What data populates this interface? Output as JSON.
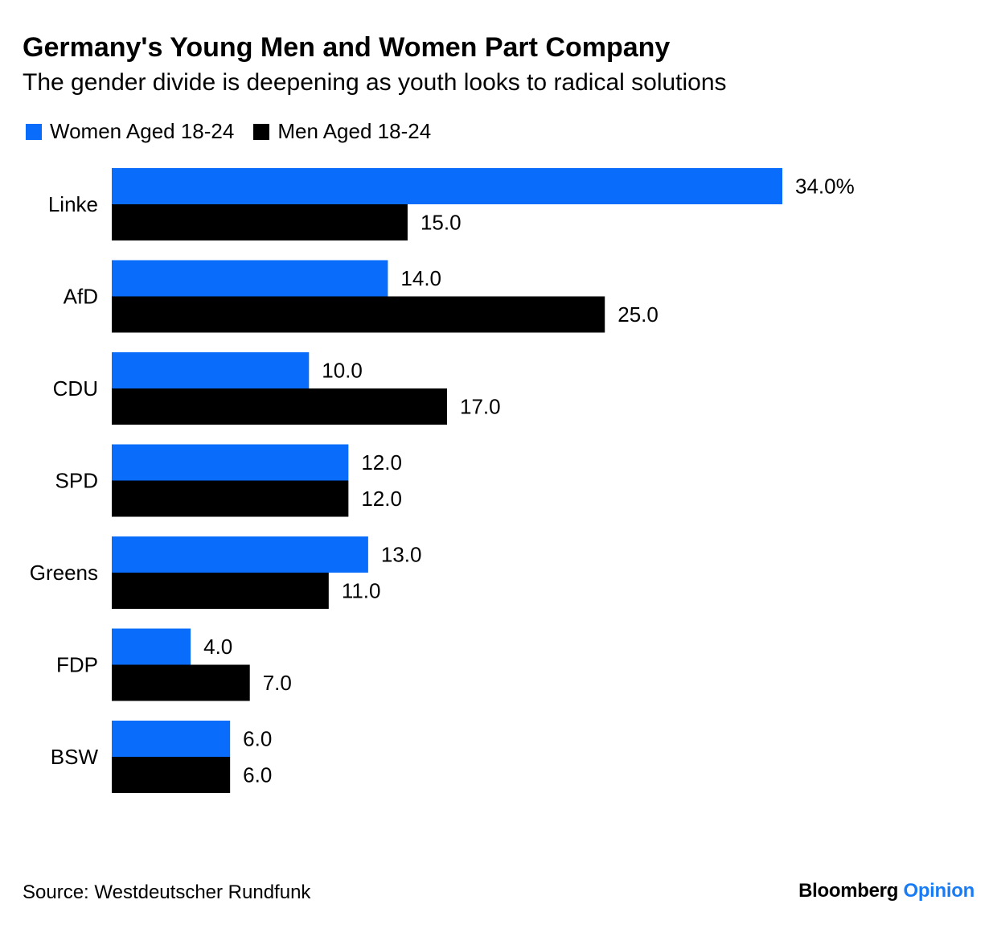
{
  "header": {
    "title": "Germany's Young Men and Women Part Company",
    "subtitle": "The gender divide is deepening as youth looks to radical solutions"
  },
  "colors": {
    "women": "#0a6cfa",
    "men": "#000000"
  },
  "chart_data": {
    "type": "bar",
    "orientation": "horizontal",
    "categories": [
      "Linke",
      "AfD",
      "CDU",
      "SPD",
      "Greens",
      "FDP",
      "BSW"
    ],
    "series": [
      {
        "name": "Women Aged 18-24",
        "values": [
          34.0,
          14.0,
          10.0,
          12.0,
          13.0,
          4.0,
          6.0
        ],
        "labels": [
          "34.0%",
          "14.0",
          "10.0",
          "12.0",
          "13.0",
          "4.0",
          "6.0"
        ]
      },
      {
        "name": "Men Aged 18-24",
        "values": [
          15.0,
          25.0,
          17.0,
          12.0,
          11.0,
          7.0,
          6.0
        ],
        "labels": [
          "15.0",
          "25.0",
          "17.0",
          "12.0",
          "11.0",
          "7.0",
          "6.0"
        ]
      }
    ],
    "xlim": [
      0,
      34
    ],
    "grid": false,
    "legend": "top-left"
  },
  "footer": {
    "source": "Source: Westdeutscher Rundfunk",
    "brand": "Bloomberg",
    "brand_accent": "Opinion"
  }
}
